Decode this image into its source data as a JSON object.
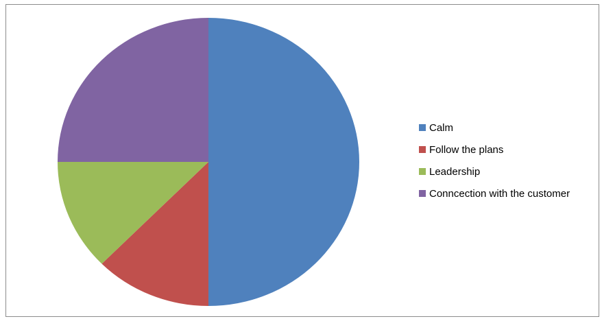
{
  "chart_data": {
    "type": "pie",
    "title": "",
    "legend_position": "right",
    "slices": [
      {
        "label": "Calm",
        "value": 50,
        "color": "#4f81bd"
      },
      {
        "label": "Follow the plans",
        "value": 12.5,
        "color": "#c0504d"
      },
      {
        "label": "Leadership",
        "value": 12.5,
        "color": "#9bbb59"
      },
      {
        "label": "Conncection with the customer",
        "value": 25,
        "color": "#8064a2"
      }
    ]
  }
}
